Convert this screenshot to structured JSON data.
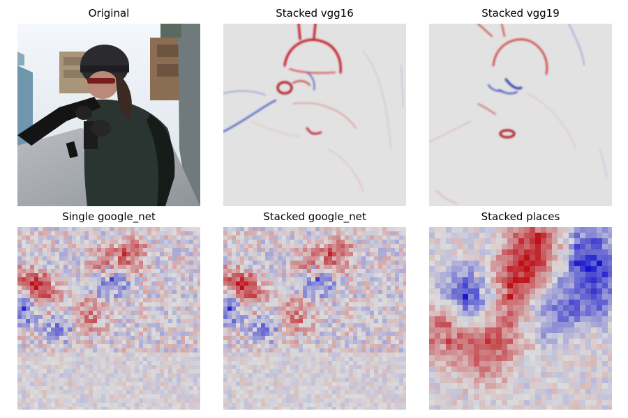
{
  "figure": {
    "panels": [
      {
        "id": "original",
        "title": "Original",
        "kind": "photo"
      },
      {
        "id": "vgg16",
        "title": "Stacked vgg16",
        "kind": "smooth-heatmap"
      },
      {
        "id": "vgg19",
        "title": "Stacked vgg19",
        "kind": "smooth-heatmap"
      },
      {
        "id": "single-googlenet",
        "title": "Single google_net",
        "kind": "grid-heatmap"
      },
      {
        "id": "stacked-googlenet",
        "title": "Stacked google_net",
        "kind": "grid-heatmap"
      },
      {
        "id": "places",
        "title": "Stacked places",
        "kind": "blocky-heatmap"
      }
    ],
    "colors": {
      "positive": "#c0111b",
      "negative": "#1e1ecf",
      "neutral": "#dcdcdc"
    }
  }
}
